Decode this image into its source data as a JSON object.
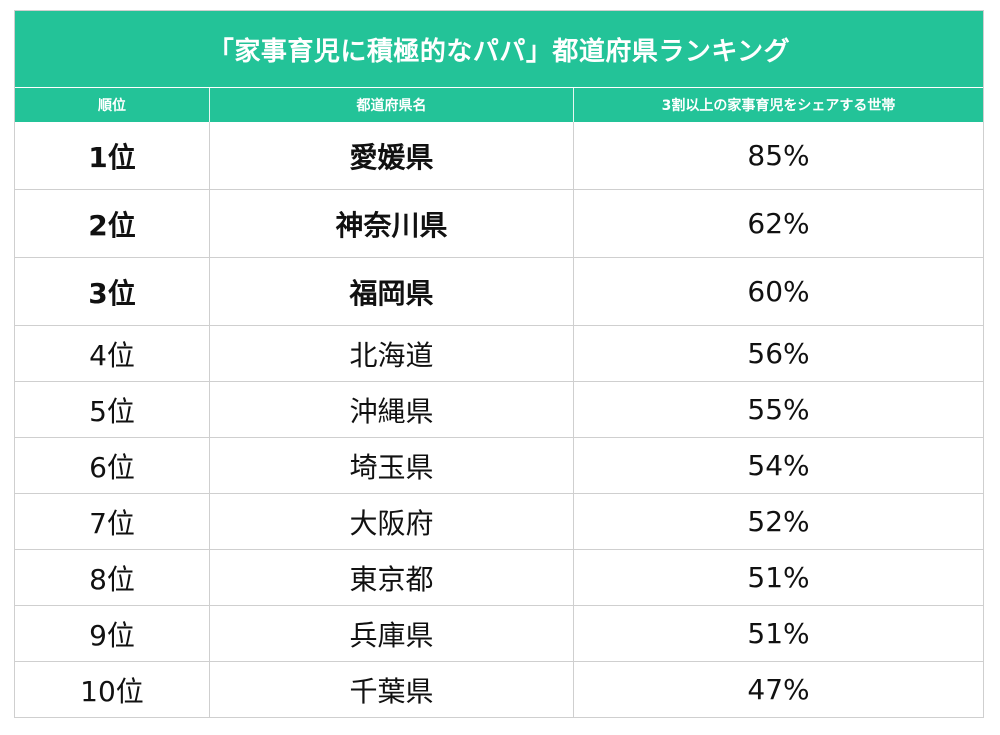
{
  "title": "「家事育児に積極的なパパ」都道府県ランキング",
  "columns": [
    "順位",
    "都道府県名",
    "3割以上の家事育児をシェアする世帯"
  ],
  "rows": [
    {
      "rank": "1位",
      "prefecture": "愛媛県",
      "share": "85%"
    },
    {
      "rank": "2位",
      "prefecture": "神奈川県",
      "share": "62%"
    },
    {
      "rank": "3位",
      "prefecture": "福岡県",
      "share": "60%"
    },
    {
      "rank": "4位",
      "prefecture": "北海道",
      "share": "56%"
    },
    {
      "rank": "5位",
      "prefecture": "沖縄県",
      "share": "55%"
    },
    {
      "rank": "6位",
      "prefecture": "埼玉県",
      "share": "54%"
    },
    {
      "rank": "7位",
      "prefecture": "大阪府",
      "share": "52%"
    },
    {
      "rank": "8位",
      "prefecture": "東京都",
      "share": "51%"
    },
    {
      "rank": "9位",
      "prefecture": "兵庫県",
      "share": "51%"
    },
    {
      "rank": "10位",
      "prefecture": "千葉県",
      "share": "47%"
    }
  ],
  "colors": {
    "header_bg": "#23c398",
    "header_text": "#ffffff",
    "grid": "#cfcfcf"
  }
}
